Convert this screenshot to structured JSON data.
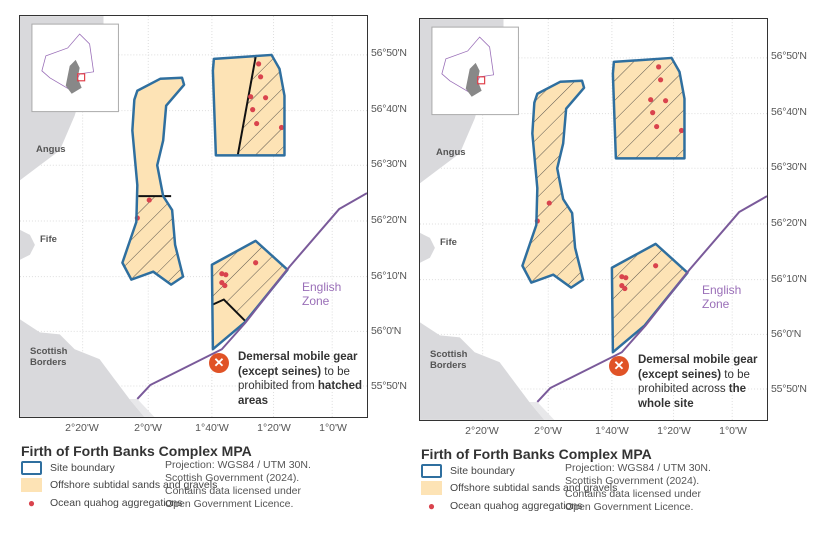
{
  "panels": [
    {
      "note": {
        "bold1": "Demersal mobile gear (except seines)",
        "normal": " to be prohibited from ",
        "bold2": "hatched areas"
      },
      "hatch": "partial"
    },
    {
      "note": {
        "bold1": "Demersal mobile gear (except seines)",
        "normal": " to be prohibited across ",
        "bold2": "the whole site"
      },
      "hatch": "whole"
    }
  ],
  "lat_ticks": [
    "56°50'N",
    "56°40'N",
    "56°30'N",
    "56°20'N",
    "56°10'N",
    "56°0'N",
    "55°50'N"
  ],
  "lon_ticks": [
    "2°20'W",
    "2°0'W",
    "1°40'W",
    "1°20'W",
    "1°0'W"
  ],
  "places": {
    "angus": "Angus",
    "fife": "Fife",
    "borders_1": "Scottish",
    "borders_2": "Borders",
    "zone_1": "English",
    "zone_2": "Zone"
  },
  "legend": {
    "title": "Firth of Forth Banks Complex MPA",
    "items": [
      {
        "label": "Site boundary",
        "icon": "site-boundary-swatch"
      },
      {
        "label": "Offshore subtidal sands and gravels",
        "icon": "sand-swatch"
      },
      {
        "label": "Ocean quahog aggregations",
        "icon": "red-dot"
      }
    ],
    "credit": [
      "Projection: WGS84 / UTM 30N.",
      "Scottish Government (2024).",
      "Contains data licensed under",
      "Open Government Licence."
    ]
  },
  "colors": {
    "boundary": "#2f6f9f",
    "sand": "#fde3b5",
    "quahog": "#d9434d",
    "zone_line": "#7a5a9a",
    "land": "#d9d9dc",
    "prohibited_icon": "#e05327"
  }
}
